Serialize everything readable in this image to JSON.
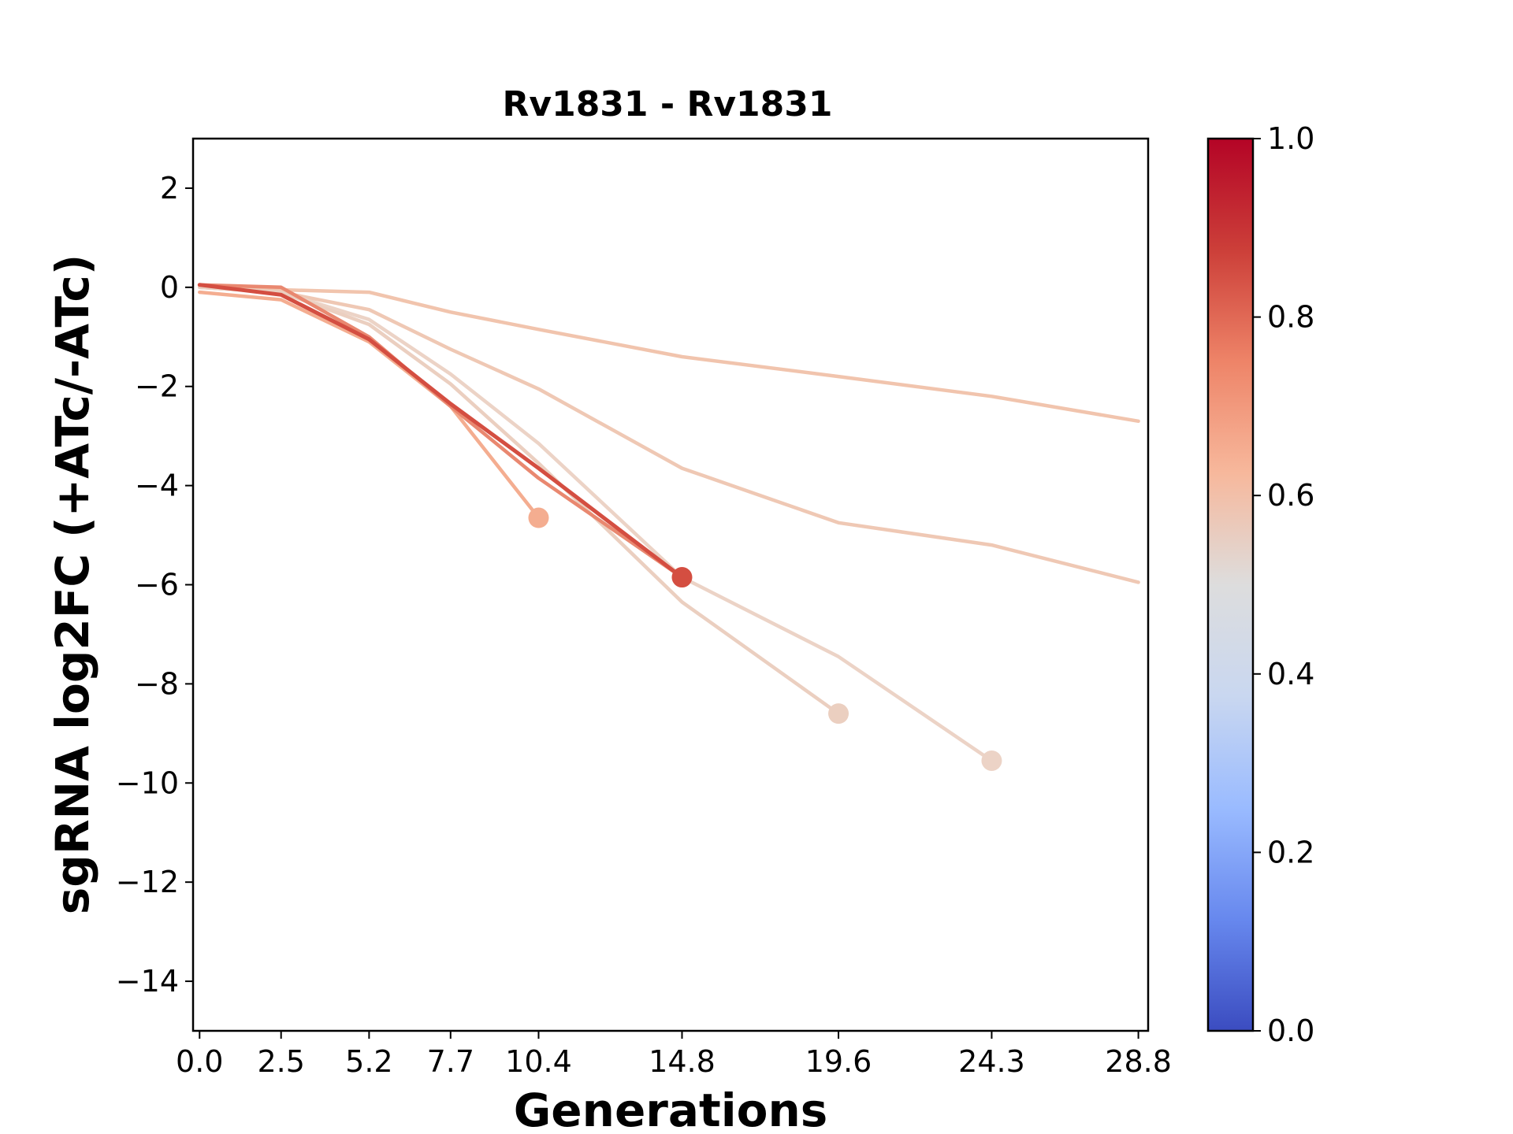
{
  "chart_data": {
    "type": "line",
    "title": "Rv1831 - Rv1831",
    "xlabel": "Generations",
    "ylabel": "sgRNA log2FC (+ATc/-ATc)",
    "xlim": [
      -0.2,
      29.1
    ],
    "ylim": [
      -15,
      3
    ],
    "xticks": [
      0.0,
      2.5,
      5.2,
      7.7,
      10.4,
      14.8,
      19.6,
      24.3,
      28.8
    ],
    "xtick_labels": [
      "0.0",
      "2.5",
      "5.2",
      "7.7",
      "10.4",
      "14.8",
      "19.6",
      "24.3",
      "28.8"
    ],
    "yticks": [
      2,
      0,
      -2,
      -4,
      -6,
      -8,
      -10,
      -12,
      -14
    ],
    "ytick_labels": [
      "2",
      "0",
      "−2",
      "−4",
      "−6",
      "−8",
      "−10",
      "−12",
      "−14"
    ],
    "grid": false,
    "legend": "none",
    "colorbar": {
      "cmap": "coolwarm",
      "range": [
        0,
        1
      ],
      "ticks": [
        0.0,
        0.2,
        0.4,
        0.6,
        0.8,
        1.0
      ],
      "tick_labels": [
        "0.0",
        "0.2",
        "0.4",
        "0.6",
        "0.8",
        "1.0"
      ],
      "stops": [
        "#3b4cc0",
        "#6788ee",
        "#9abbff",
        "#c9d7f0",
        "#dddddd",
        "#f7b89c",
        "#ee8468",
        "#cc3f39",
        "#b40426"
      ]
    },
    "series": [
      {
        "color": "#f1c4ad",
        "x": [
          0.0,
          2.5,
          5.2,
          7.7,
          10.4,
          14.8,
          19.6,
          24.3,
          28.8
        ],
        "y": [
          0.0,
          -0.05,
          -0.1,
          -0.5,
          -0.85,
          -1.4,
          -1.8,
          -2.2,
          -2.7
        ],
        "endpoint": false
      },
      {
        "color": "#efc8b4",
        "x": [
          0.0,
          2.5,
          5.2,
          7.7,
          10.4,
          14.8,
          19.6,
          24.3,
          28.8
        ],
        "y": [
          0.0,
          -0.1,
          -0.45,
          -1.25,
          -2.05,
          -3.65,
          -4.75,
          -5.2,
          -5.95
        ],
        "endpoint": false
      },
      {
        "color": "#ecd3c6",
        "x": [
          0.0,
          2.5,
          5.2,
          7.7,
          10.4,
          14.8,
          19.6,
          24.3
        ],
        "y": [
          0.0,
          -0.1,
          -0.65,
          -1.75,
          -3.15,
          -5.85,
          -7.45,
          -9.55
        ],
        "endpoint": true
      },
      {
        "color": "#ebcfc0",
        "x": [
          0.0,
          2.5,
          5.2,
          7.7,
          10.4,
          14.8,
          19.6
        ],
        "y": [
          0.0,
          -0.1,
          -0.75,
          -1.95,
          -3.55,
          -6.35,
          -8.6
        ],
        "endpoint": true
      },
      {
        "color": "#f4ad90",
        "x": [
          0.0,
          2.5,
          5.2,
          7.7,
          10.4
        ],
        "y": [
          -0.1,
          -0.25,
          -1.1,
          -2.4,
          -4.65
        ],
        "endpoint": true
      },
      {
        "color": "#e98870",
        "x": [
          0.0,
          2.5,
          5.2,
          7.7,
          10.4,
          14.8
        ],
        "y": [
          0.05,
          0.0,
          -1.0,
          -2.4,
          -3.85,
          -5.85
        ],
        "endpoint": false
      },
      {
        "color": "#d44e41",
        "x": [
          0.0,
          2.5,
          5.2,
          7.7,
          10.4,
          14.8
        ],
        "y": [
          0.05,
          -0.15,
          -1.05,
          -2.35,
          -3.65,
          -5.85
        ],
        "endpoint": true
      }
    ]
  }
}
